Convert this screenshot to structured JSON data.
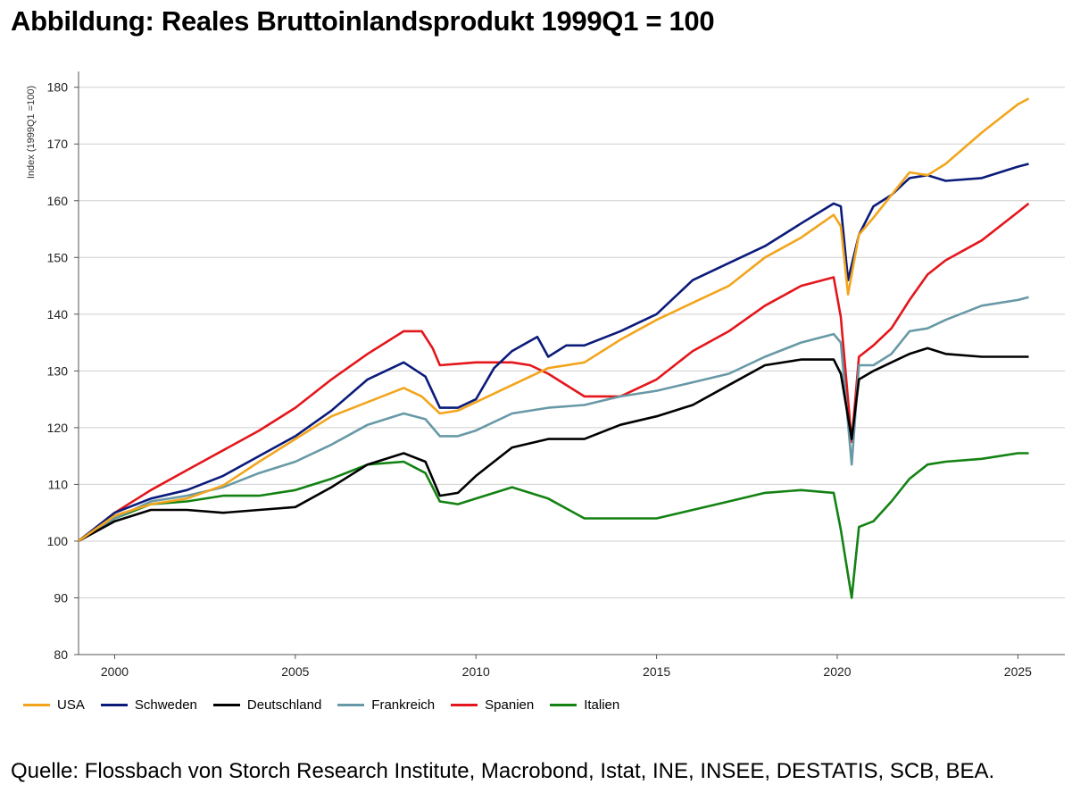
{
  "title": "Abbildung: Reales Bruttoinlandsprodukt 1999Q1 = 100",
  "source": "Quelle: Flossbach von Storch Research Institute, Macrobond, Istat, INE, INSEE, DESTATIS, SCB, BEA.",
  "chart_data": {
    "type": "line",
    "title": "Abbildung: Reales Bruttoinlandsprodukt 1999Q1 = 100",
    "xlabel": "",
    "ylabel": "Index (1999Q1 =100)",
    "xlim": [
      1999.0,
      2026.3
    ],
    "ylim": [
      80,
      182
    ],
    "x_ticks": [
      2000,
      2005,
      2010,
      2015,
      2020,
      2025
    ],
    "y_ticks": [
      80,
      90,
      100,
      110,
      120,
      130,
      140,
      150,
      160,
      170,
      180
    ],
    "grid": "horizontal",
    "legend_position": "bottom",
    "series": [
      {
        "name": "USA",
        "color": "#F2A51D",
        "points": [
          [
            1999.0,
            100
          ],
          [
            2000.0,
            104.5
          ],
          [
            2001.0,
            106.5
          ],
          [
            2002.0,
            107.5
          ],
          [
            2003.0,
            109.8
          ],
          [
            2004.0,
            114
          ],
          [
            2005.0,
            118
          ],
          [
            2006.0,
            122
          ],
          [
            2007.0,
            124.5
          ],
          [
            2008.0,
            127
          ],
          [
            2008.5,
            125.5
          ],
          [
            2009.0,
            122.5
          ],
          [
            2009.5,
            123
          ],
          [
            2010.0,
            124.5
          ],
          [
            2011.0,
            127.5
          ],
          [
            2012.0,
            130.5
          ],
          [
            2013.0,
            131.5
          ],
          [
            2014.0,
            135.5
          ],
          [
            2015.0,
            139
          ],
          [
            2016.0,
            142
          ],
          [
            2017.0,
            145
          ],
          [
            2018.0,
            150
          ],
          [
            2019.0,
            153.5
          ],
          [
            2019.9,
            157.5
          ],
          [
            2020.1,
            155.5
          ],
          [
            2020.3,
            143.5
          ],
          [
            2020.6,
            154
          ],
          [
            2021.0,
            157
          ],
          [
            2021.5,
            161
          ],
          [
            2022.0,
            165
          ],
          [
            2022.5,
            164.5
          ],
          [
            2023.0,
            166.5
          ],
          [
            2024.0,
            172
          ],
          [
            2024.5,
            174.5
          ],
          [
            2025.0,
            177
          ],
          [
            2025.3,
            178
          ]
        ]
      },
      {
        "name": "Schweden",
        "color": "#0B1B7A",
        "points": [
          [
            1999.0,
            100
          ],
          [
            2000.0,
            105
          ],
          [
            2001.0,
            107.5
          ],
          [
            2002.0,
            109
          ],
          [
            2003.0,
            111.5
          ],
          [
            2004.0,
            115
          ],
          [
            2005.0,
            118.5
          ],
          [
            2006.0,
            123
          ],
          [
            2007.0,
            128.5
          ],
          [
            2008.0,
            131.5
          ],
          [
            2008.6,
            129
          ],
          [
            2009.0,
            123.5
          ],
          [
            2009.5,
            123.5
          ],
          [
            2010.0,
            125
          ],
          [
            2010.5,
            130.5
          ],
          [
            2011.0,
            133.5
          ],
          [
            2011.7,
            136
          ],
          [
            2012.0,
            132.5
          ],
          [
            2012.5,
            134.5
          ],
          [
            2013.0,
            134.5
          ],
          [
            2014.0,
            137
          ],
          [
            2015.0,
            140
          ],
          [
            2016.0,
            146
          ],
          [
            2017.0,
            149
          ],
          [
            2018.0,
            152
          ],
          [
            2019.0,
            156
          ],
          [
            2019.9,
            159.5
          ],
          [
            2020.1,
            159
          ],
          [
            2020.3,
            146
          ],
          [
            2020.6,
            154
          ],
          [
            2021.0,
            159
          ],
          [
            2021.5,
            161
          ],
          [
            2022.0,
            164
          ],
          [
            2022.5,
            164.5
          ],
          [
            2023.0,
            163.5
          ],
          [
            2024.0,
            164
          ],
          [
            2025.0,
            166
          ],
          [
            2025.3,
            166.5
          ]
        ]
      },
      {
        "name": "Deutschland",
        "color": "#000000",
        "points": [
          [
            1999.0,
            100
          ],
          [
            2000.0,
            103.5
          ],
          [
            2001.0,
            105.5
          ],
          [
            2002.0,
            105.5
          ],
          [
            2003.0,
            105
          ],
          [
            2004.0,
            105.5
          ],
          [
            2005.0,
            106
          ],
          [
            2006.0,
            109.5
          ],
          [
            2007.0,
            113.5
          ],
          [
            2008.0,
            115.5
          ],
          [
            2008.6,
            114
          ],
          [
            2009.0,
            108
          ],
          [
            2009.5,
            108.5
          ],
          [
            2010.0,
            111.5
          ],
          [
            2011.0,
            116.5
          ],
          [
            2012.0,
            118
          ],
          [
            2013.0,
            118
          ],
          [
            2014.0,
            120.5
          ],
          [
            2015.0,
            122
          ],
          [
            2016.0,
            124
          ],
          [
            2017.0,
            127.5
          ],
          [
            2018.0,
            131
          ],
          [
            2019.0,
            132
          ],
          [
            2019.9,
            132
          ],
          [
            2020.1,
            129.5
          ],
          [
            2020.4,
            118
          ],
          [
            2020.6,
            128.5
          ],
          [
            2021.0,
            130
          ],
          [
            2021.5,
            131.5
          ],
          [
            2022.0,
            133
          ],
          [
            2022.5,
            134
          ],
          [
            2023.0,
            133
          ],
          [
            2024.0,
            132.5
          ],
          [
            2025.0,
            132.5
          ],
          [
            2025.3,
            132.5
          ]
        ]
      },
      {
        "name": "Frankreich",
        "color": "#6899A6",
        "points": [
          [
            1999.0,
            100
          ],
          [
            2000.0,
            104
          ],
          [
            2001.0,
            107
          ],
          [
            2002.0,
            108
          ],
          [
            2003.0,
            109.5
          ],
          [
            2004.0,
            112
          ],
          [
            2005.0,
            114
          ],
          [
            2006.0,
            117
          ],
          [
            2007.0,
            120.5
          ],
          [
            2008.0,
            122.5
          ],
          [
            2008.6,
            121.5
          ],
          [
            2009.0,
            118.5
          ],
          [
            2009.5,
            118.5
          ],
          [
            2010.0,
            119.5
          ],
          [
            2011.0,
            122.5
          ],
          [
            2012.0,
            123.5
          ],
          [
            2013.0,
            124
          ],
          [
            2014.0,
            125.5
          ],
          [
            2015.0,
            126.5
          ],
          [
            2016.0,
            128
          ],
          [
            2017.0,
            129.5
          ],
          [
            2018.0,
            132.5
          ],
          [
            2019.0,
            135
          ],
          [
            2019.9,
            136.5
          ],
          [
            2020.1,
            135
          ],
          [
            2020.4,
            113.5
          ],
          [
            2020.6,
            131
          ],
          [
            2021.0,
            131
          ],
          [
            2021.5,
            133
          ],
          [
            2022.0,
            137
          ],
          [
            2022.5,
            137.5
          ],
          [
            2023.0,
            139
          ],
          [
            2024.0,
            141.5
          ],
          [
            2025.0,
            142.5
          ],
          [
            2025.3,
            143
          ]
        ]
      },
      {
        "name": "Spanien",
        "color": "#E3161B",
        "points": [
          [
            1999.0,
            100
          ],
          [
            2000.0,
            105
          ],
          [
            2001.0,
            109
          ],
          [
            2002.0,
            112.5
          ],
          [
            2003.0,
            116
          ],
          [
            2004.0,
            119.5
          ],
          [
            2005.0,
            123.5
          ],
          [
            2006.0,
            128.5
          ],
          [
            2007.0,
            133
          ],
          [
            2008.0,
            137
          ],
          [
            2008.5,
            137
          ],
          [
            2008.8,
            134
          ],
          [
            2009.0,
            131
          ],
          [
            2010.0,
            131.5
          ],
          [
            2011.0,
            131.5
          ],
          [
            2011.5,
            131
          ],
          [
            2012.0,
            129.5
          ],
          [
            2013.0,
            125.5
          ],
          [
            2014.0,
            125.5
          ],
          [
            2015.0,
            128.5
          ],
          [
            2016.0,
            133.5
          ],
          [
            2017.0,
            137
          ],
          [
            2018.0,
            141.5
          ],
          [
            2019.0,
            145
          ],
          [
            2019.9,
            146.5
          ],
          [
            2020.1,
            139.5
          ],
          [
            2020.4,
            117.5
          ],
          [
            2020.6,
            132.5
          ],
          [
            2021.0,
            134.5
          ],
          [
            2021.5,
            137.5
          ],
          [
            2022.0,
            142.5
          ],
          [
            2022.5,
            147
          ],
          [
            2023.0,
            149.5
          ],
          [
            2024.0,
            153
          ],
          [
            2025.0,
            158
          ],
          [
            2025.3,
            159.5
          ]
        ]
      },
      {
        "name": "Italien",
        "color": "#138213",
        "points": [
          [
            1999.0,
            100
          ],
          [
            2000.0,
            104
          ],
          [
            2001.0,
            106.5
          ],
          [
            2002.0,
            107
          ],
          [
            2003.0,
            108
          ],
          [
            2004.0,
            108
          ],
          [
            2005.0,
            109
          ],
          [
            2006.0,
            111
          ],
          [
            2007.0,
            113.5
          ],
          [
            2008.0,
            114
          ],
          [
            2008.6,
            112
          ],
          [
            2009.0,
            107
          ],
          [
            2009.5,
            106.5
          ],
          [
            2010.0,
            107.5
          ],
          [
            2011.0,
            109.5
          ],
          [
            2012.0,
            107.5
          ],
          [
            2013.0,
            104
          ],
          [
            2014.0,
            104
          ],
          [
            2015.0,
            104
          ],
          [
            2016.0,
            105.5
          ],
          [
            2017.0,
            107
          ],
          [
            2018.0,
            108.5
          ],
          [
            2019.0,
            109
          ],
          [
            2019.9,
            108.5
          ],
          [
            2020.1,
            102
          ],
          [
            2020.4,
            90
          ],
          [
            2020.6,
            102.5
          ],
          [
            2021.0,
            103.5
          ],
          [
            2021.5,
            107
          ],
          [
            2022.0,
            111
          ],
          [
            2022.5,
            113.5
          ],
          [
            2023.0,
            114
          ],
          [
            2024.0,
            114.5
          ],
          [
            2025.0,
            115.5
          ],
          [
            2025.3,
            115.5
          ]
        ]
      }
    ]
  }
}
